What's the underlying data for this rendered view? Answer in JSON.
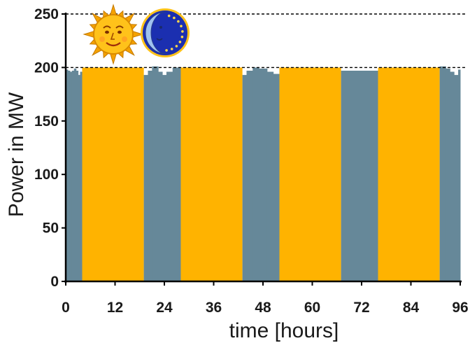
{
  "chart_data": {
    "type": "bar",
    "xlabel": "time [hours]",
    "ylabel": "Power in MW",
    "xlim": [
      0,
      96
    ],
    "ylim": [
      0,
      250
    ],
    "xticks": [
      0,
      12,
      24,
      36,
      48,
      60,
      72,
      84,
      96
    ],
    "yticks": [
      0,
      50,
      100,
      150,
      200,
      250
    ],
    "reference_lines": [
      200,
      250
    ],
    "colors": {
      "day": "#FFB300",
      "night": "#668899",
      "reference": "#000000"
    },
    "icons": [
      "sun-icon",
      "moon-icon"
    ],
    "segments": [
      {
        "phase": "night",
        "start": 0,
        "end": 4,
        "steps": [
          [
            0,
            198
          ],
          [
            0.5,
            197
          ],
          [
            1,
            196
          ],
          [
            1.5,
            197
          ],
          [
            2,
            199
          ],
          [
            2.5,
            197
          ],
          [
            3,
            193
          ],
          [
            3.5,
            196
          ]
        ]
      },
      {
        "phase": "day",
        "start": 4,
        "end": 19,
        "power": 200
      },
      {
        "phase": "night",
        "start": 19,
        "end": 28,
        "steps": [
          [
            19,
            193
          ],
          [
            20,
            197
          ],
          [
            21,
            201
          ],
          [
            22.5,
            196
          ],
          [
            23.5,
            193
          ],
          [
            24.5,
            196
          ],
          [
            26,
            200
          ]
        ]
      },
      {
        "phase": "day",
        "start": 28,
        "end": 43,
        "power": 200
      },
      {
        "phase": "night",
        "start": 43,
        "end": 52,
        "steps": [
          [
            43,
            193
          ],
          [
            44,
            197
          ],
          [
            45.5,
            200
          ],
          [
            47,
            199
          ],
          [
            49,
            196
          ],
          [
            50.5,
            194
          ]
        ]
      },
      {
        "phase": "day",
        "start": 52,
        "end": 67,
        "power": 200
      },
      {
        "phase": "night",
        "start": 67,
        "end": 76,
        "steps": [
          [
            67,
            197
          ]
        ]
      },
      {
        "phase": "day",
        "start": 76,
        "end": 91,
        "power": 200
      },
      {
        "phase": "night",
        "start": 91,
        "end": 96,
        "steps": [
          [
            91,
            201
          ],
          [
            92.5,
            199
          ],
          [
            93.5,
            196
          ],
          [
            94.5,
            193
          ],
          [
            95.5,
            198
          ]
        ]
      }
    ]
  }
}
